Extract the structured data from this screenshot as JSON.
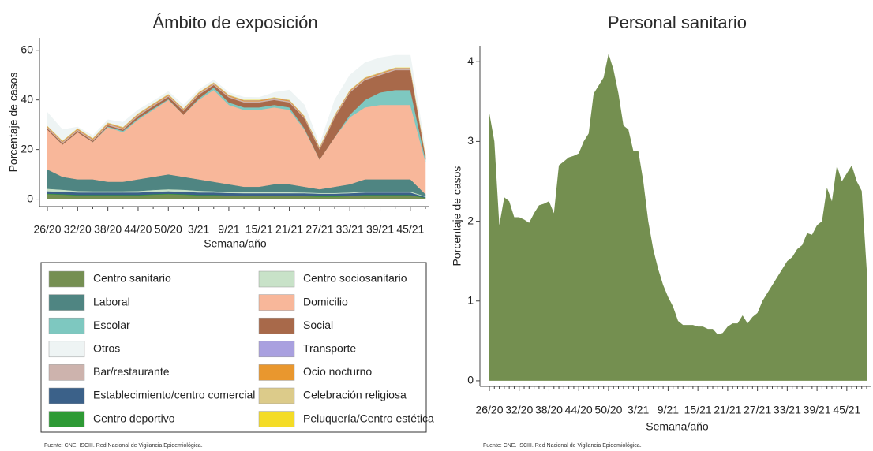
{
  "chart_data": [
    {
      "type": "stacked_area",
      "title": "Ámbito de exposición",
      "x_label": "Semana/año",
      "y_label": "Porcentaje de casos",
      "source": "Fuente: CNE. ISCIII. Red Nacional de Vigilancia Epidemiológica.",
      "categories": [
        "26/20",
        null,
        "32/20",
        null,
        "38/20",
        null,
        "44/20",
        null,
        "50/20",
        null,
        "3/21",
        null,
        "9/21",
        null,
        "15/21",
        null,
        "21/21",
        null,
        "27/21",
        null,
        "33/21",
        null,
        "39/21",
        null,
        "45/21",
        null
      ],
      "ylim": [
        -3,
        65
      ],
      "yticks": [
        0,
        20,
        40,
        60
      ],
      "series": [
        {
          "name": "Centro sanitario",
          "color": "#758f52",
          "values": [
            2,
            1.8,
            1.5,
            1.5,
            1.5,
            1.5,
            1.5,
            1.8,
            2,
            1.8,
            1.5,
            1.5,
            1.3,
            1.2,
            1.2,
            1.2,
            1.2,
            1.2,
            1,
            1,
            1.2,
            1.5,
            1.5,
            1.5,
            1.5,
            0.5
          ]
        },
        {
          "name": "Centro sociosanitario",
          "color": "#c8e2c8",
          "values": [
            1,
            0.8,
            0.6,
            0.5,
            0.5,
            0.5,
            0.6,
            0.7,
            0.8,
            0.8,
            0.7,
            0.5,
            0.4,
            0.4,
            0.4,
            0.4,
            0.4,
            0.3,
            0.3,
            0.3,
            0.3,
            0.4,
            0.4,
            0.4,
            0.4,
            0.2
          ]
        },
        {
          "name": "Laboral",
          "color": "#4f8582",
          "values": [
            7.8,
            5.2,
            4.7,
            4.8,
            3.8,
            3.8,
            4.7,
            5.3,
            6,
            5.2,
            4.6,
            3.8,
            3.1,
            2.2,
            2.2,
            3.2,
            3.2,
            2.3,
            1.5,
            2.5,
            3.3,
            4.9,
            4.9,
            4.9,
            4.9,
            0.9
          ]
        },
        {
          "name": "Domicilio",
          "color": "#f8b79a",
          "values": [
            16,
            13,
            19,
            15,
            22,
            20,
            24,
            27,
            30,
            25,
            32,
            37,
            32,
            31,
            31,
            31,
            30,
            23,
            12,
            20,
            27,
            29,
            30,
            30,
            30,
            13
          ]
        },
        {
          "name": "Escolar",
          "color": "#7ec8c0",
          "values": [
            0,
            0,
            0,
            0,
            0.3,
            0.5,
            0.5,
            0.5,
            0.3,
            0,
            0.5,
            1,
            1,
            1,
            1,
            1,
            1,
            0.5,
            0,
            0,
            1,
            3,
            5,
            6,
            6,
            1
          ]
        },
        {
          "name": "Social",
          "color": "#a8694a",
          "values": [
            0.5,
            0.5,
            0.5,
            0.5,
            0.5,
            0.5,
            1,
            1,
            1,
            1.5,
            1.5,
            1,
            2,
            2,
            2,
            2,
            2,
            4,
            4,
            8,
            9,
            8,
            7,
            8,
            8,
            1
          ]
        },
        {
          "name": "Otros",
          "color": "#eef4f4",
          "values": [
            5.4,
            4.4,
            0.5,
            1,
            1.1,
            1.9,
            1.4,
            1,
            1,
            1.4,
            0.9,
            1,
            0.9,
            1,
            0.9,
            1.9,
            3.9,
            4.4,
            0.9,
            5.9,
            5.9,
            5.9,
            5.9,
            4.9,
            4.9,
            1.9
          ]
        },
        {
          "name": "Transporte",
          "color": "#a9a0df",
          "values": [
            0.1,
            0.1,
            0.1,
            0.1,
            0.1,
            0.1,
            0.1,
            0.1,
            0.1,
            0.1,
            0.1,
            0.1,
            0.1,
            0.1,
            0.1,
            0.1,
            0.1,
            0.1,
            0.1,
            0.1,
            0.1,
            0.1,
            0.1,
            0.1,
            0.1,
            0.1
          ]
        },
        {
          "name": "Bar/restaurante",
          "color": "#cdb3ad",
          "values": [
            0.5,
            0.5,
            0.5,
            0.5,
            0.5,
            0.5,
            0.5,
            0.5,
            0.5,
            0.5,
            0.5,
            0.5,
            0.5,
            0.5,
            0.5,
            0.5,
            0.5,
            0.5,
            0.5,
            0.5,
            0.5,
            0.5,
            0.5,
            0.5,
            0.5,
            0.5
          ]
        },
        {
          "name": "Ocio nocturno",
          "color": "#e9972e",
          "values": [
            0.3,
            0.3,
            0.3,
            0.3,
            0.3,
            0.3,
            0.3,
            0.3,
            0.3,
            0.3,
            0.3,
            0.3,
            0.3,
            0.3,
            0.3,
            0.3,
            0.3,
            0.3,
            0.3,
            0.3,
            0.3,
            0.3,
            0.3,
            0.3,
            0.3,
            0.3
          ]
        },
        {
          "name": "Establecimiento/centro comercial",
          "color": "#3b6189",
          "values": [
            1,
            1,
            1,
            1,
            1,
            1,
            1,
            1,
            1,
            1,
            1,
            1,
            1,
            1,
            1,
            1,
            1,
            1,
            1,
            1,
            1,
            1,
            1,
            1,
            1,
            0.3
          ]
        },
        {
          "name": "Celebración religiosa",
          "color": "#dccb8a",
          "values": [
            0.1,
            0.1,
            0.1,
            0.1,
            0.1,
            0.1,
            0.1,
            0.1,
            0.1,
            0.1,
            0.1,
            0.1,
            0.1,
            0.1,
            0.1,
            0.1,
            0.1,
            0.1,
            0.1,
            0.1,
            0.1,
            0.1,
            0.1,
            0.1,
            0.1,
            0.1
          ]
        },
        {
          "name": "Centro deportivo",
          "color": "#2e9a35",
          "values": [
            0.2,
            0.2,
            0.2,
            0.2,
            0.2,
            0.2,
            0.2,
            0.2,
            0.2,
            0.2,
            0.2,
            0.2,
            0.2,
            0.2,
            0.2,
            0.2,
            0.2,
            0.2,
            0.2,
            0.2,
            0.2,
            0.2,
            0.2,
            0.2,
            0.2,
            0.1
          ]
        },
        {
          "name": "Peluquería/Centro estética",
          "color": "#f4dc27",
          "values": [
            0.1,
            0.1,
            0.1,
            0.1,
            0.1,
            0.1,
            0.1,
            0.1,
            0.1,
            0.1,
            0.1,
            0.1,
            0.1,
            0.1,
            0.1,
            0.1,
            0.1,
            0.1,
            0.1,
            0.1,
            0.1,
            0.1,
            0.1,
            0.1,
            0.1,
            0.1
          ]
        }
      ]
    },
    {
      "type": "area",
      "title": "Personal sanitario",
      "x_label": "Semana/año",
      "y_label": "Porcentaje de casos",
      "source": "Fuente: CNE. ISCIII. Red Nacional de Vigilancia Epidemiológica.",
      "categories": [
        "26/20",
        null,
        null,
        null,
        null,
        null,
        "32/20",
        null,
        null,
        null,
        null,
        null,
        "38/20",
        null,
        null,
        null,
        null,
        null,
        "44/20",
        null,
        null,
        null,
        null,
        null,
        "50/20",
        null,
        null,
        null,
        null,
        null,
        "3/21",
        null,
        null,
        null,
        null,
        null,
        "9/21",
        null,
        null,
        null,
        null,
        null,
        "15/21",
        null,
        null,
        null,
        null,
        null,
        "21/21",
        null,
        null,
        null,
        null,
        null,
        "27/21",
        null,
        null,
        null,
        null,
        null,
        "33/21",
        null,
        null,
        null,
        null,
        null,
        "39/21",
        null,
        null,
        null,
        null,
        null,
        "45/21",
        null,
        null,
        null,
        null
      ],
      "ylim": [
        -0.07,
        4.2
      ],
      "yticks": [
        0,
        1,
        2,
        3,
        4
      ],
      "color": "#748f50",
      "values": [
        3.35,
        3.0,
        1.95,
        2.3,
        2.25,
        2.05,
        2.05,
        2.02,
        1.98,
        2.1,
        2.2,
        2.22,
        2.25,
        2.1,
        2.7,
        2.75,
        2.8,
        2.82,
        2.85,
        3.0,
        3.1,
        3.6,
        3.7,
        3.8,
        4.1,
        3.9,
        3.6,
        3.2,
        3.15,
        2.88,
        2.88,
        2.5,
        2.0,
        1.65,
        1.4,
        1.2,
        1.05,
        0.93,
        0.75,
        0.7,
        0.7,
        0.7,
        0.68,
        0.68,
        0.65,
        0.65,
        0.58,
        0.6,
        0.68,
        0.72,
        0.72,
        0.82,
        0.72,
        0.8,
        0.85,
        1.0,
        1.1,
        1.2,
        1.3,
        1.4,
        1.5,
        1.55,
        1.65,
        1.7,
        1.85,
        1.83,
        1.95,
        2.0,
        2.42,
        2.25,
        2.7,
        2.5,
        2.6,
        2.7,
        2.5,
        2.38,
        1.4
      ]
    }
  ]
}
